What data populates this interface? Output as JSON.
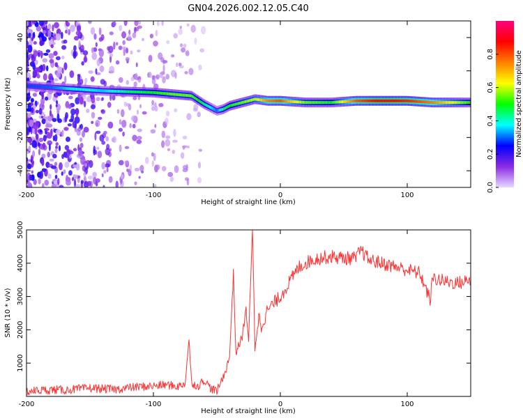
{
  "title": "GN04.2026.002.12.05.C40",
  "chart_data": [
    {
      "type": "heatmap",
      "title": "GN04.2026.002.12.05.C40",
      "xlabel": "Height of straight line (km)",
      "ylabel": "Frequency (Hz)",
      "xlim": [
        -200,
        150
      ],
      "ylim": [
        -50,
        50
      ],
      "xticks": [
        -200,
        -100,
        0,
        100
      ],
      "yticks": [
        -40,
        -20,
        0,
        20,
        40
      ],
      "colorbar": {
        "label": "Normalized spectral amplitude",
        "range": [
          0,
          1
        ],
        "ticks": [
          0,
          0.2,
          0.4,
          0.6,
          0.8
        ],
        "tick_labels": [
          "0.0",
          "0.2",
          "0.4",
          "0.6",
          "0.8"
        ],
        "colors": [
          "#e6d8ff",
          "#8a2be2",
          "#0000ff",
          "#00ffff",
          "#00ff00",
          "#ffff00",
          "#ff8000",
          "#ff0000",
          "#ff0080"
        ]
      },
      "ridge": {
        "height_km": [
          -200,
          -180,
          -160,
          -140,
          -120,
          -100,
          -85,
          -70,
          -60,
          -50,
          -45,
          -40,
          -30,
          -20,
          -10,
          0,
          10,
          20,
          40,
          60,
          80,
          100,
          120,
          150
        ],
        "frequency_hz": [
          11,
          10,
          9,
          8,
          7.5,
          7,
          6,
          5,
          0,
          -4,
          -3,
          -1,
          1,
          3,
          2,
          2,
          1.5,
          1,
          1,
          2,
          2,
          2,
          1,
          1
        ],
        "amplitude": [
          0.28,
          0.3,
          0.4,
          0.35,
          0.45,
          0.5,
          0.55,
          0.55,
          0.45,
          0.3,
          0.45,
          0.5,
          0.55,
          0.6,
          0.75,
          0.8,
          0.65,
          0.55,
          0.5,
          0.8,
          0.9,
          0.85,
          0.75,
          0.5
        ]
      }
    },
    {
      "type": "line",
      "xlabel": "Height of straight line (km)",
      "ylabel": "SNR (10 * v/v)",
      "xlim": [
        -200,
        150
      ],
      "ylim": [
        0,
        5000
      ],
      "xticks": [
        -200,
        -100,
        0,
        100
      ],
      "yticks": [
        1000,
        2000,
        3000,
        4000,
        5000
      ],
      "color": "#ff3030",
      "series": [
        {
          "name": "SNR",
          "x": [
            -200,
            -190,
            -180,
            -170,
            -160,
            -150,
            -140,
            -130,
            -120,
            -110,
            -100,
            -90,
            -80,
            -75,
            -72,
            -70,
            -65,
            -60,
            -55,
            -50,
            -45,
            -42,
            -40,
            -37,
            -35,
            -32,
            -30,
            -27,
            -25,
            -22,
            -20,
            -17,
            -15,
            -10,
            -5,
            0,
            5,
            10,
            15,
            20,
            25,
            30,
            40,
            50,
            60,
            63,
            70,
            80,
            90,
            100,
            110,
            118,
            120,
            130,
            140,
            150
          ],
          "y": [
            150,
            180,
            200,
            190,
            220,
            250,
            230,
            210,
            260,
            290,
            310,
            350,
            300,
            400,
            1700,
            420,
            300,
            500,
            250,
            150,
            600,
            900,
            1200,
            3700,
            1300,
            1600,
            1800,
            2600,
            1700,
            5000,
            1500,
            2400,
            2100,
            2600,
            2800,
            3000,
            3300,
            3600,
            3900,
            4000,
            4100,
            4150,
            4200,
            4150,
            4150,
            4400,
            4100,
            4000,
            3900,
            3800,
            3700,
            2900,
            3550,
            3450,
            3400,
            3500
          ]
        }
      ]
    }
  ]
}
